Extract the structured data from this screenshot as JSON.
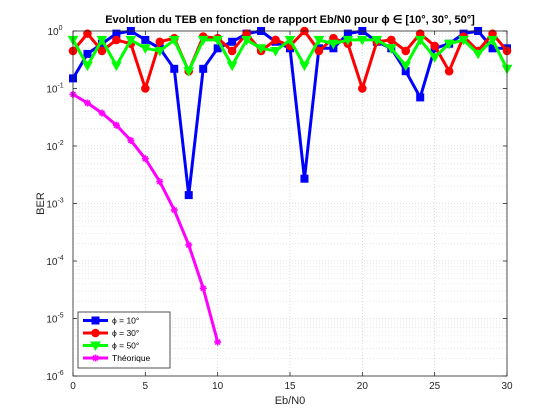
{
  "chart_data": {
    "type": "line",
    "title": "Evolution du TEB en fonction de rapport Eb/N0 pour ϕ ∈ [10°, 30°, 50°]",
    "xlabel": "Eb/N0",
    "ylabel": "BER",
    "xlim": [
      0,
      30
    ],
    "ylim": [
      1e-06,
      1
    ],
    "yscale": "log",
    "grid": true,
    "minor_grid": true,
    "legend_position": "bottom-left",
    "x_ticks": [
      "0",
      "5",
      "10",
      "15",
      "20",
      "25",
      "30"
    ],
    "y_ticks": [
      {
        "base": "10",
        "exp": "-6"
      },
      {
        "base": "10",
        "exp": "-5"
      },
      {
        "base": "10",
        "exp": "-4"
      },
      {
        "base": "10",
        "exp": "-3"
      },
      {
        "base": "10",
        "exp": "-2"
      },
      {
        "base": "10",
        "exp": "-1"
      },
      {
        "base": "10",
        "exp": "0"
      }
    ],
    "series": [
      {
        "name": "ϕ = 10°",
        "color": "#0000ff",
        "marker": "square",
        "x": [
          0,
          1,
          2,
          3,
          4,
          5,
          6,
          7,
          8,
          9,
          10,
          11,
          12,
          13,
          14,
          15,
          16,
          17,
          18,
          19,
          20,
          21,
          22,
          23,
          24,
          25,
          26,
          27,
          28,
          29,
          30
        ],
        "y": [
          0.15,
          0.4,
          0.6,
          0.9,
          1.0,
          0.7,
          0.5,
          0.22,
          0.0014,
          0.22,
          0.5,
          0.65,
          0.9,
          1.0,
          0.65,
          0.5,
          0.0027,
          0.5,
          0.5,
          0.9,
          1.0,
          0.65,
          0.5,
          0.2,
          0.07,
          0.5,
          0.6,
          0.9,
          1.0,
          0.5,
          0.5
        ]
      },
      {
        "name": "ϕ = 30°",
        "color": "#ff0000",
        "marker": "circle",
        "x": [
          0,
          1,
          2,
          3,
          4,
          5,
          6,
          7,
          8,
          9,
          10,
          11,
          12,
          13,
          14,
          15,
          16,
          17,
          18,
          19,
          20,
          21,
          22,
          23,
          24,
          25,
          26,
          27,
          28,
          29,
          30
        ],
        "y": [
          0.45,
          0.9,
          0.45,
          0.7,
          0.6,
          0.1,
          0.65,
          0.75,
          0.2,
          0.8,
          0.75,
          0.45,
          0.9,
          0.45,
          0.7,
          0.55,
          1.0,
          0.45,
          0.75,
          0.6,
          0.1,
          0.65,
          0.7,
          0.45,
          0.9,
          0.55,
          0.2,
          0.8,
          0.45,
          0.9,
          0.45
        ]
      },
      {
        "name": "ϕ = 50°",
        "color": "#00ff00",
        "marker": "triangle-down",
        "x": [
          0,
          1,
          2,
          3,
          4,
          5,
          6,
          7,
          8,
          9,
          10,
          11,
          12,
          13,
          14,
          15,
          16,
          17,
          18,
          19,
          20,
          21,
          22,
          23,
          24,
          25,
          26,
          27,
          28,
          29,
          30
        ],
        "y": [
          0.7,
          0.25,
          0.7,
          0.25,
          0.7,
          0.5,
          0.45,
          0.7,
          0.2,
          0.7,
          0.7,
          0.25,
          0.7,
          0.5,
          0.45,
          0.7,
          0.25,
          0.7,
          0.6,
          0.7,
          0.7,
          0.7,
          0.5,
          0.25,
          0.7,
          0.35,
          0.6,
          0.7,
          0.4,
          0.7,
          0.22
        ]
      },
      {
        "name": "Théorique",
        "color": "#ff00ff",
        "marker": "asterisk",
        "x": [
          0,
          1,
          2,
          3,
          4,
          5,
          6,
          7,
          8,
          9,
          10
        ],
        "y": [
          0.079,
          0.056,
          0.0375,
          0.023,
          0.0125,
          0.006,
          0.0024,
          0.00077,
          0.00019,
          3.36e-05,
          3.9e-06
        ]
      }
    ]
  }
}
